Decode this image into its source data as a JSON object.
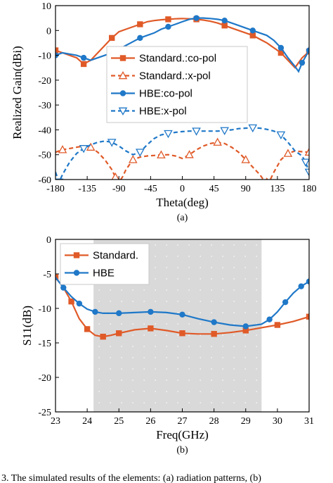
{
  "caption": "3. The simulated results of the elements: (a) radiation patterns, (b)",
  "colors": {
    "standard": "#e05a28",
    "hbe": "#1f78c8",
    "band": "#d9d9d9"
  },
  "chart_data": [
    {
      "type": "line",
      "panel_label": "(a)",
      "xlabel": "Theta(deg)",
      "ylabel": "Realized Gain(dBi)",
      "xlim": [
        -180,
        180
      ],
      "ylim": [
        -60,
        10
      ],
      "xticks": [
        -180,
        -135,
        -90,
        -45,
        0,
        45,
        90,
        135,
        180
      ],
      "yticks": [
        10,
        0,
        -10,
        -20,
        -30,
        -40,
        -50,
        -60
      ],
      "legend_position": "center",
      "series": [
        {
          "name": "Standard.:co-pol",
          "color": "#e05a28",
          "dash": "solid",
          "marker": "square",
          "x": [
            -180,
            -170,
            -160,
            -150,
            -140,
            -130,
            -120,
            -110,
            -100,
            -90,
            -80,
            -70,
            -60,
            -50,
            -40,
            -30,
            -20,
            -10,
            0,
            10,
            20,
            30,
            40,
            50,
            60,
            70,
            80,
            90,
            100,
            110,
            120,
            130,
            140,
            150,
            160,
            170,
            180
          ],
          "y": [
            -8,
            -9,
            -10,
            -11,
            -13.5,
            -12,
            -9,
            -6,
            -3,
            -0.5,
            0.5,
            1.5,
            2.5,
            3.5,
            4,
            4.3,
            4.5,
            4.7,
            4.8,
            4.7,
            4.5,
            4.2,
            3.7,
            3,
            2,
            1,
            0,
            -1,
            -2,
            -3.5,
            -5,
            -7,
            -9,
            -12,
            -15,
            -11,
            -8.5
          ]
        },
        {
          "name": "Standard.:x-pol",
          "color": "#e05a28",
          "dash": "dashed",
          "marker": "triangle",
          "x": [
            -180,
            -170,
            -160,
            -150,
            -140,
            -130,
            -120,
            -110,
            -100,
            -95,
            -90,
            -85,
            -80,
            -70,
            -60,
            -50,
            -40,
            -30,
            -20,
            -10,
            0,
            10,
            20,
            30,
            40,
            50,
            60,
            70,
            80,
            90,
            100,
            110,
            115,
            120,
            125,
            130,
            140,
            150,
            160,
            170,
            180
          ],
          "y": [
            -49,
            -48,
            -47.5,
            -47,
            -46.5,
            -47,
            -49,
            -52,
            -56,
            -59,
            -61,
            -59,
            -56,
            -52,
            -51,
            -50.5,
            -50.3,
            -50.1,
            -50,
            -50.5,
            -51.5,
            -50,
            -48,
            -46.5,
            -45.5,
            -45,
            -45.5,
            -47,
            -49,
            -52,
            -55,
            -58,
            -60,
            -61,
            -60,
            -57,
            -52,
            -49.5,
            -48.5,
            -48.8,
            -49
          ]
        },
        {
          "name": "HBE:co-pol",
          "color": "#1f78c8",
          "dash": "solid",
          "marker": "circle",
          "x": [
            -180,
            -170,
            -160,
            -150,
            -140,
            -130,
            -120,
            -110,
            -100,
            -90,
            -80,
            -70,
            -60,
            -50,
            -40,
            -30,
            -20,
            -10,
            0,
            10,
            20,
            30,
            40,
            50,
            60,
            70,
            80,
            90,
            100,
            110,
            120,
            130,
            140,
            150,
            160,
            165,
            170,
            180
          ],
          "y": [
            -10,
            -9,
            -9.5,
            -10,
            -11,
            -12,
            -11,
            -10,
            -9,
            -7.5,
            -6,
            -4.5,
            -3,
            -2,
            -1,
            0.5,
            1.5,
            2.5,
            3.5,
            4.5,
            5,
            5,
            4.8,
            4.5,
            4,
            3,
            2,
            1,
            0,
            -1,
            -2,
            -4,
            -7,
            -11,
            -14.5,
            -16.5,
            -13,
            -8
          ]
        },
        {
          "name": "HBE:x-pol",
          "color": "#1f78c8",
          "dash": "dashed",
          "marker": "triangle-down",
          "x": [
            -180,
            -175,
            -170,
            -160,
            -150,
            -140,
            -130,
            -120,
            -110,
            -100,
            -90,
            -80,
            -70,
            -60,
            -50,
            -40,
            -30,
            -20,
            -10,
            0,
            10,
            20,
            30,
            40,
            50,
            60,
            70,
            80,
            90,
            100,
            110,
            120,
            130,
            140,
            150,
            160,
            170,
            175,
            180
          ],
          "y": [
            -57,
            -61,
            -58,
            -53,
            -49.5,
            -47.5,
            -46,
            -45,
            -44.5,
            -45,
            -46.5,
            -48.5,
            -50,
            -49,
            -46,
            -43.5,
            -42,
            -41.5,
            -41,
            -40.7,
            -40.5,
            -40.5,
            -40.5,
            -40.5,
            -40.5,
            -40.3,
            -40,
            -39.5,
            -39.3,
            -39.2,
            -39.3,
            -39.8,
            -40.5,
            -42,
            -45,
            -48.5,
            -50.5,
            -53,
            -57
          ]
        }
      ]
    },
    {
      "type": "line",
      "panel_label": "(b)",
      "xlabel": "Freq(GHz)",
      "ylabel": "S11(dB)",
      "xlim": [
        23,
        31
      ],
      "ylim": [
        -25,
        0
      ],
      "xticks": [
        23,
        24,
        25,
        26,
        27,
        28,
        29,
        30,
        31
      ],
      "yticks": [
        0,
        -5,
        -10,
        -15,
        -20,
        -25
      ],
      "shaded_band": [
        24.2,
        29.5
      ],
      "legend_position": "top-left",
      "series": [
        {
          "name": "Standard.",
          "color": "#e05a28",
          "dash": "solid",
          "marker": "square",
          "x": [
            23,
            23.25,
            23.5,
            23.75,
            24,
            24.25,
            24.5,
            24.75,
            25,
            25.5,
            26,
            26.5,
            27,
            27.5,
            28,
            28.5,
            29,
            29.5,
            30,
            30.5,
            31
          ],
          "y": [
            -5.5,
            -7,
            -9,
            -11.5,
            -13,
            -13.9,
            -14.1,
            -13.9,
            -13.6,
            -13.1,
            -12.9,
            -13.2,
            -13.6,
            -13.7,
            -13.7,
            -13.5,
            -13.2,
            -12.8,
            -12.4,
            -11.9,
            -11.2
          ]
        },
        {
          "name": "HBE",
          "color": "#1f78c8",
          "dash": "solid",
          "marker": "circle",
          "x": [
            23,
            23.25,
            23.5,
            23.75,
            24,
            24.25,
            24.5,
            25,
            25.5,
            26,
            26.5,
            27,
            27.5,
            28,
            28.5,
            29,
            29.5,
            29.75,
            30,
            30.25,
            30.5,
            30.75,
            31
          ],
          "y": [
            -5.5,
            -7,
            -8.3,
            -9.3,
            -10.1,
            -10.5,
            -10.7,
            -10.7,
            -10.6,
            -10.5,
            -10.6,
            -10.9,
            -11.5,
            -12,
            -12.4,
            -12.6,
            -12.3,
            -11.6,
            -10.5,
            -9.1,
            -7.8,
            -6.8,
            -6.1
          ]
        }
      ]
    }
  ]
}
